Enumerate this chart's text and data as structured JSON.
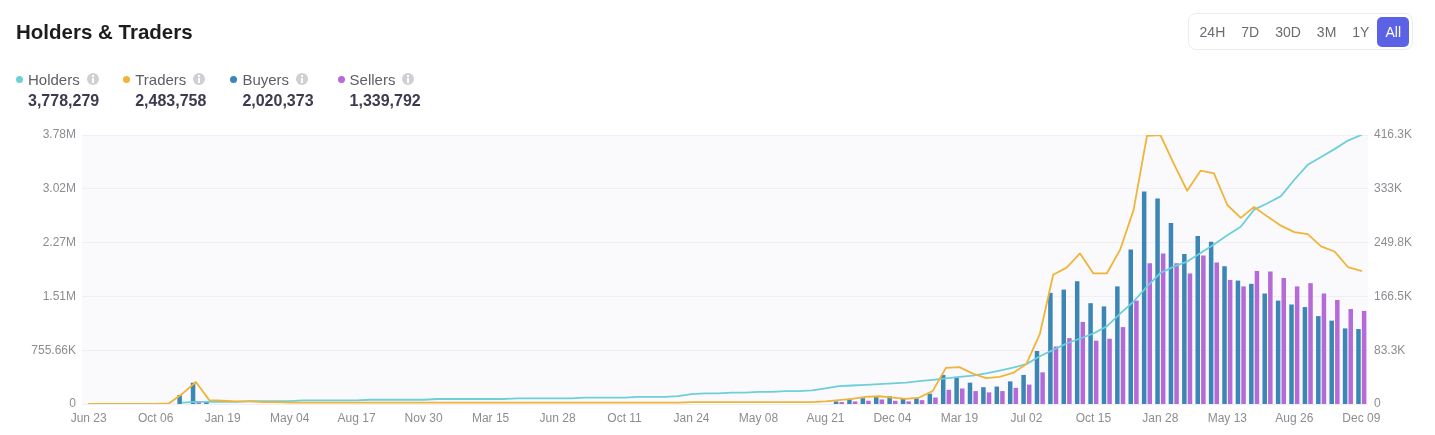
{
  "chart_data": {
    "type": "bar",
    "title": "Holders & Traders",
    "categories": [
      "Jun 23",
      null,
      null,
      null,
      null,
      "Oct 06",
      null,
      null,
      null,
      null,
      "Jan 19",
      null,
      null,
      null,
      null,
      "May 04",
      null,
      null,
      null,
      null,
      "Aug 17",
      null,
      null,
      null,
      null,
      "Nov 30",
      null,
      null,
      null,
      null,
      "Mar 15",
      null,
      null,
      null,
      null,
      "Jun 28",
      null,
      null,
      null,
      null,
      "Oct 11",
      null,
      null,
      null,
      null,
      "Jan 24",
      null,
      null,
      null,
      null,
      "May 08",
      null,
      null,
      null,
      null,
      "Aug 21",
      null,
      null,
      null,
      null,
      "Dec 04",
      null,
      null,
      null,
      null,
      "Mar 19",
      null,
      null,
      null,
      null,
      "Jul 02",
      null,
      null,
      null,
      null,
      "Oct 15",
      null,
      null,
      null,
      null,
      "Jan 28",
      null,
      null,
      null,
      null,
      "May 13",
      null,
      null,
      null,
      null,
      "Aug 26",
      null,
      null,
      null,
      null,
      "Dec 09"
    ],
    "series": [
      {
        "name": "Holders",
        "type": "line",
        "color": "#6ccfd9",
        "values": [
          null,
          null,
          null,
          null,
          null,
          null,
          null,
          20000,
          30000,
          30000,
          30000,
          30000,
          40000,
          40000,
          40000,
          40000,
          50000,
          50000,
          50000,
          50000,
          50000,
          60000,
          60000,
          60000,
          60000,
          60000,
          70000,
          70000,
          70000,
          70000,
          70000,
          70000,
          80000,
          80000,
          80000,
          80000,
          80000,
          90000,
          90000,
          90000,
          90000,
          100000,
          100000,
          100000,
          110000,
          140000,
          150000,
          150000,
          160000,
          160000,
          170000,
          170000,
          180000,
          180000,
          190000,
          220000,
          250000,
          260000,
          270000,
          280000,
          290000,
          300000,
          320000,
          340000,
          360000,
          380000,
          400000,
          430000,
          470000,
          510000,
          560000,
          670000,
          760000,
          850000,
          920000,
          990000,
          1090000,
          1270000,
          1440000,
          1650000,
          1840000,
          1930000,
          2000000,
          2120000,
          2240000,
          2370000,
          2490000,
          2730000,
          2820000,
          2920000,
          3150000,
          3360000,
          3470000,
          3580000,
          3700000,
          3778279
        ]
      },
      {
        "name": "Traders",
        "type": "line",
        "axis": "y2",
        "color": "#f0b43a",
        "values": [
          0,
          0,
          0,
          0,
          0,
          0,
          1000,
          16000,
          34000,
          6000,
          5000,
          4000,
          4000,
          3000,
          3000,
          2000,
          2000,
          2000,
          2000,
          2000,
          2000,
          2000,
          2000,
          2000,
          2000,
          2000,
          2000,
          2000,
          2000,
          2000,
          2000,
          2000,
          2000,
          2000,
          2000,
          2000,
          2000,
          2000,
          2000,
          2000,
          2000,
          2000,
          2000,
          2000,
          2000,
          3000,
          3000,
          3000,
          3000,
          3000,
          3000,
          3000,
          3000,
          3000,
          3000,
          4000,
          6000,
          8000,
          11000,
          12000,
          10000,
          8000,
          10000,
          20000,
          56000,
          57000,
          47000,
          40000,
          42000,
          48000,
          62000,
          108000,
          200000,
          211000,
          233000,
          202000,
          202000,
          239000,
          300000,
          415000,
          416300,
          372000,
          330000,
          361000,
          357000,
          308000,
          288000,
          305000,
          290000,
          276000,
          266000,
          263000,
          244000,
          236000,
          212000,
          206000
        ]
      },
      {
        "name": "Buyers",
        "axis": "y2",
        "color": "#3b86b5",
        "values": [
          null,
          null,
          null,
          null,
          null,
          null,
          null,
          14000,
          33000,
          4000,
          null,
          null,
          null,
          null,
          null,
          null,
          null,
          null,
          null,
          null,
          null,
          null,
          null,
          null,
          null,
          null,
          null,
          null,
          null,
          null,
          null,
          null,
          null,
          null,
          null,
          null,
          null,
          null,
          null,
          null,
          null,
          null,
          null,
          null,
          null,
          null,
          null,
          null,
          null,
          null,
          null,
          null,
          null,
          null,
          null,
          null,
          4000,
          8000,
          9000,
          12000,
          12000,
          8000,
          9000,
          16000,
          45000,
          41000,
          33000,
          26000,
          27000,
          35000,
          45000,
          82000,
          172000,
          177000,
          190000,
          156000,
          151000,
          182000,
          239000,
          329000,
          318000,
          280000,
          232000,
          260000,
          251000,
          213000,
          191000,
          186000,
          171000,
          160000,
          154000,
          150000,
          136000,
          129000,
          117000,
          116000
        ]
      },
      {
        "name": "Sellers",
        "axis": "y2",
        "color": "#b46ad8",
        "values": [
          null,
          null,
          null,
          null,
          null,
          null,
          null,
          null,
          4000,
          null,
          null,
          null,
          null,
          null,
          null,
          null,
          null,
          null,
          null,
          null,
          null,
          null,
          null,
          null,
          null,
          null,
          null,
          null,
          null,
          null,
          null,
          null,
          null,
          null,
          null,
          null,
          null,
          null,
          null,
          null,
          null,
          null,
          null,
          null,
          null,
          null,
          null,
          null,
          null,
          null,
          null,
          null,
          null,
          null,
          null,
          null,
          3000,
          4000,
          5000,
          7000,
          5000,
          4000,
          6000,
          10000,
          22000,
          24000,
          20000,
          18000,
          20000,
          25000,
          30000,
          49000,
          89000,
          102000,
          127000,
          98000,
          101000,
          119000,
          160000,
          218000,
          233000,
          218000,
          202000,
          230000,
          219000,
          192000,
          182000,
          206000,
          205000,
          195000,
          182000,
          187000,
          171000,
          161000,
          147000,
          144000
        ]
      }
    ],
    "ylim": [
      0,
      3778279
    ],
    "yticks": [
      0,
      {
        "value": 755656,
        "label": "755.66K"
      },
      {
        "value": 1511312,
        "label": "1.51M"
      },
      {
        "value": 2266967,
        "label": "2.27M"
      },
      {
        "value": 3022623,
        "label": "3.02M"
      },
      {
        "value": 3778279,
        "label": "3.78M"
      }
    ],
    "y2lim": [
      0,
      416300
    ],
    "y2ticks": [
      0,
      {
        "value": 83260,
        "label": "83.3K"
      },
      {
        "value": 166520,
        "label": "166.5K"
      },
      {
        "value": 249780,
        "label": "249.8K"
      },
      {
        "value": 333040,
        "label": "333K"
      },
      {
        "value": 416300,
        "label": "416.3K"
      }
    ],
    "grid": "y",
    "legend": "top left",
    "marker": "none",
    "line_style": "solid",
    "annotations": [
      "3,778,279",
      "2,483,758",
      "2,020,373",
      "1,339,792",
      "24H",
      "7D",
      "30D",
      "3M",
      "1Y",
      "All"
    ]
  }
}
